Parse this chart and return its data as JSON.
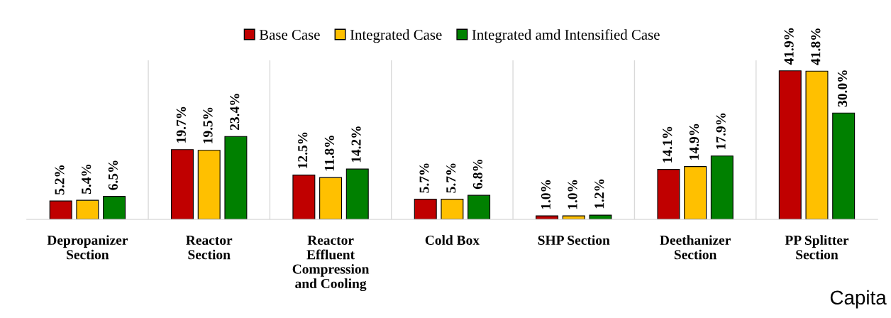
{
  "chart_data": {
    "type": "bar",
    "categories": [
      "Depropanizer\nSection",
      "Reactor\nSection",
      "Reactor\nEffluent\nCompression\nand Cooling",
      "Cold Box",
      "SHP Section",
      "Deethanizer\nSection",
      "PP Splitter\nSection"
    ],
    "series": [
      {
        "name": "Base Case",
        "color": "#c00000",
        "values": [
          5.2,
          19.7,
          12.5,
          5.7,
          1.0,
          14.1,
          41.9
        ],
        "value_labels": [
          "5.2%",
          "19.7%",
          "12.5%",
          "5.7%",
          "1.0%",
          "14.1%",
          "41.9%"
        ]
      },
      {
        "name": "Integrated Case",
        "color": "#ffc000",
        "values": [
          5.4,
          19.5,
          11.8,
          5.7,
          1.0,
          14.9,
          41.8
        ],
        "value_labels": [
          "5.4%",
          "19.5%",
          "11.8%",
          "5.7%",
          "1.0%",
          "14.9%",
          "41.8%"
        ]
      },
      {
        "name": "Integrated amd Intensified Case",
        "color": "#008000",
        "values": [
          6.5,
          23.4,
          14.2,
          6.8,
          1.2,
          17.9,
          30.0
        ],
        "value_labels": [
          "6.5%",
          "23.4%",
          "14.2%",
          "6.8%",
          "1.2%",
          "17.9%",
          "30.0%"
        ]
      }
    ],
    "grid": "x",
    "legend": "top",
    "annotations": [
      "Capita"
    ]
  }
}
